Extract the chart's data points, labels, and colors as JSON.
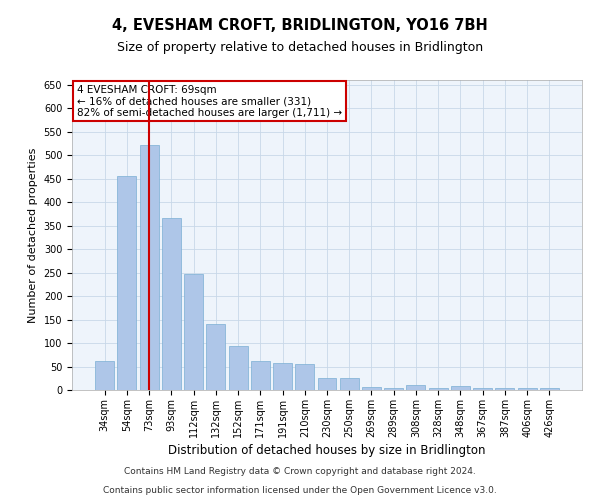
{
  "title": "4, EVESHAM CROFT, BRIDLINGTON, YO16 7BH",
  "subtitle": "Size of property relative to detached houses in Bridlington",
  "xlabel": "Distribution of detached houses by size in Bridlington",
  "ylabel": "Number of detached properties",
  "categories": [
    "34sqm",
    "54sqm",
    "73sqm",
    "93sqm",
    "112sqm",
    "132sqm",
    "152sqm",
    "171sqm",
    "191sqm",
    "210sqm",
    "230sqm",
    "250sqm",
    "269sqm",
    "289sqm",
    "308sqm",
    "328sqm",
    "348sqm",
    "367sqm",
    "387sqm",
    "406sqm",
    "426sqm"
  ],
  "values": [
    62,
    455,
    522,
    367,
    248,
    140,
    93,
    62,
    57,
    56,
    26,
    25,
    7,
    5,
    11,
    5,
    8,
    4,
    5,
    4,
    4
  ],
  "bar_color": "#aec6e8",
  "bar_edge_color": "#7bafd4",
  "marker_bar_index": 2,
  "marker_color": "#cc0000",
  "annotation_line1": "4 EVESHAM CROFT: 69sqm",
  "annotation_line2": "← 16% of detached houses are smaller (331)",
  "annotation_line3": "82% of semi-detached houses are larger (1,711) →",
  "annotation_box_color": "#cc0000",
  "ylim": [
    0,
    660
  ],
  "yticks": [
    0,
    50,
    100,
    150,
    200,
    250,
    300,
    350,
    400,
    450,
    500,
    550,
    600,
    650
  ],
  "grid_color": "#c8d8e8",
  "bg_color": "#eef4fb",
  "footer_line1": "Contains HM Land Registry data © Crown copyright and database right 2024.",
  "footer_line2": "Contains public sector information licensed under the Open Government Licence v3.0.",
  "title_fontsize": 10.5,
  "subtitle_fontsize": 9,
  "xlabel_fontsize": 8.5,
  "ylabel_fontsize": 8,
  "tick_fontsize": 7,
  "annotation_fontsize": 7.5,
  "footer_fontsize": 6.5
}
